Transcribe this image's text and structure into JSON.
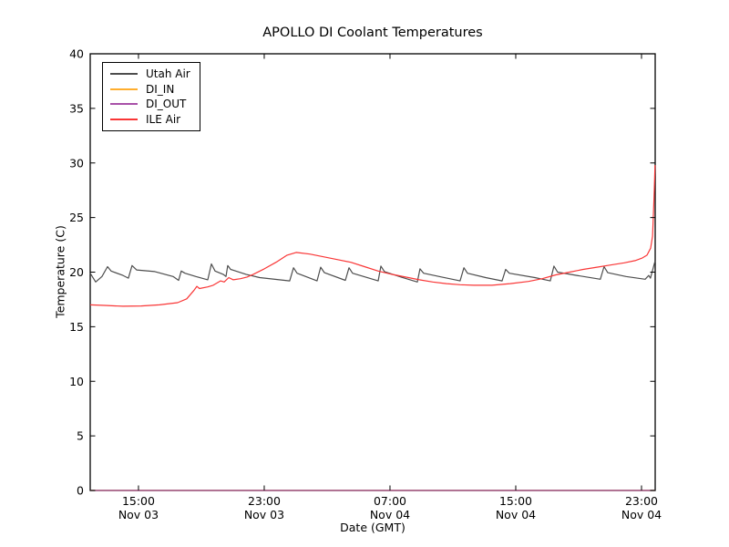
{
  "figure": {
    "background": "#ffffff",
    "frame_color": "#000000",
    "text_color": "#000000"
  },
  "chart_data": {
    "type": "line",
    "title": "APOLLO DI Coolant Temperatures",
    "xlabel": "Date (GMT)",
    "ylabel": "Temperature (C)",
    "grid": false,
    "legend_position": "upper left",
    "x_unit": "hours since Nov 03 00:00 GMT",
    "xlim": [
      11.93,
      47.87
    ],
    "ylim": [
      0,
      40
    ],
    "y_ticks": [
      0,
      5,
      10,
      15,
      20,
      25,
      30,
      35,
      40
    ],
    "x_ticks": [
      {
        "t": 15,
        "time": "15:00",
        "date": "Nov 03"
      },
      {
        "t": 23,
        "time": "23:00",
        "date": "Nov 03"
      },
      {
        "t": 31,
        "time": "07:00",
        "date": "Nov 04"
      },
      {
        "t": 39,
        "time": "15:00",
        "date": "Nov 04"
      },
      {
        "t": 47,
        "time": "23:00",
        "date": "Nov 04"
      }
    ],
    "series": [
      {
        "name": "Utah Air",
        "color": "#4d4d4d",
        "points": [
          [
            11.93,
            19.9
          ],
          [
            12.28,
            19.1
          ],
          [
            12.68,
            19.6
          ],
          [
            13.03,
            20.5
          ],
          [
            13.26,
            20.1
          ],
          [
            14.01,
            19.7
          ],
          [
            14.36,
            19.45
          ],
          [
            14.59,
            20.6
          ],
          [
            14.88,
            20.2
          ],
          [
            16.04,
            20.05
          ],
          [
            17.2,
            19.6
          ],
          [
            17.55,
            19.25
          ],
          [
            17.72,
            20.1
          ],
          [
            17.96,
            19.9
          ],
          [
            18.65,
            19.6
          ],
          [
            19.41,
            19.3
          ],
          [
            19.64,
            20.75
          ],
          [
            19.87,
            20.1
          ],
          [
            20.39,
            19.8
          ],
          [
            20.57,
            19.6
          ],
          [
            20.68,
            20.6
          ],
          [
            20.86,
            20.25
          ],
          [
            21.84,
            19.8
          ],
          [
            22.71,
            19.5
          ],
          [
            24.62,
            19.2
          ],
          [
            24.86,
            20.4
          ],
          [
            25.09,
            19.9
          ],
          [
            26.36,
            19.2
          ],
          [
            26.59,
            20.45
          ],
          [
            26.83,
            19.95
          ],
          [
            28.16,
            19.25
          ],
          [
            28.39,
            20.4
          ],
          [
            28.62,
            19.9
          ],
          [
            30.25,
            19.2
          ],
          [
            30.42,
            20.55
          ],
          [
            30.65,
            20.05
          ],
          [
            31.7,
            19.55
          ],
          [
            32.74,
            19.1
          ],
          [
            32.91,
            20.3
          ],
          [
            33.14,
            19.9
          ],
          [
            34.3,
            19.55
          ],
          [
            35.46,
            19.2
          ],
          [
            35.7,
            20.4
          ],
          [
            35.93,
            19.9
          ],
          [
            37.09,
            19.5
          ],
          [
            38.13,
            19.2
          ],
          [
            38.36,
            20.25
          ],
          [
            38.59,
            19.9
          ],
          [
            40.22,
            19.5
          ],
          [
            41.2,
            19.2
          ],
          [
            41.43,
            20.55
          ],
          [
            41.66,
            20.0
          ],
          [
            42.88,
            19.7
          ],
          [
            44.38,
            19.35
          ],
          [
            44.62,
            20.5
          ],
          [
            44.85,
            19.95
          ],
          [
            46.01,
            19.6
          ],
          [
            47.23,
            19.35
          ],
          [
            47.46,
            19.7
          ],
          [
            47.57,
            19.45
          ],
          [
            47.86,
            21.0
          ]
        ]
      },
      {
        "name": "DI_IN",
        "color": "#ffae2e",
        "points": [
          [
            11.93,
            0
          ],
          [
            47.87,
            0
          ]
        ]
      },
      {
        "name": "DI_OUT",
        "color": "#993399",
        "opacity": 0.85,
        "points": [
          [
            11.93,
            0
          ],
          [
            47.87,
            0
          ]
        ]
      },
      {
        "name": "ILE Air",
        "color": "#f93636",
        "points": [
          [
            11.93,
            17.0
          ],
          [
            12.86,
            16.95
          ],
          [
            14.01,
            16.88
          ],
          [
            15.17,
            16.9
          ],
          [
            16.33,
            17.0
          ],
          [
            17.49,
            17.2
          ],
          [
            18.07,
            17.55
          ],
          [
            18.54,
            18.35
          ],
          [
            18.71,
            18.7
          ],
          [
            18.88,
            18.5
          ],
          [
            19.41,
            18.65
          ],
          [
            19.75,
            18.8
          ],
          [
            20.22,
            19.2
          ],
          [
            20.45,
            19.1
          ],
          [
            20.74,
            19.5
          ],
          [
            21.03,
            19.3
          ],
          [
            21.49,
            19.4
          ],
          [
            21.9,
            19.55
          ],
          [
            22.3,
            19.8
          ],
          [
            23.0,
            20.3
          ],
          [
            23.75,
            20.9
          ],
          [
            24.45,
            21.55
          ],
          [
            25.03,
            21.8
          ],
          [
            25.9,
            21.65
          ],
          [
            26.77,
            21.4
          ],
          [
            27.64,
            21.15
          ],
          [
            28.51,
            20.9
          ],
          [
            29.38,
            20.5
          ],
          [
            30.25,
            20.1
          ],
          [
            31.12,
            19.8
          ],
          [
            31.99,
            19.55
          ],
          [
            32.86,
            19.3
          ],
          [
            33.72,
            19.1
          ],
          [
            34.59,
            18.95
          ],
          [
            35.46,
            18.85
          ],
          [
            36.33,
            18.8
          ],
          [
            37.49,
            18.8
          ],
          [
            38.65,
            18.95
          ],
          [
            39.81,
            19.15
          ],
          [
            40.68,
            19.4
          ],
          [
            41.55,
            19.75
          ],
          [
            42.42,
            20.0
          ],
          [
            43.29,
            20.25
          ],
          [
            44.16,
            20.45
          ],
          [
            45.03,
            20.65
          ],
          [
            45.9,
            20.85
          ],
          [
            46.59,
            21.05
          ],
          [
            47.06,
            21.3
          ],
          [
            47.35,
            21.55
          ],
          [
            47.58,
            22.2
          ],
          [
            47.7,
            23.3
          ],
          [
            47.75,
            25.0
          ],
          [
            47.81,
            27.5
          ],
          [
            47.86,
            29.8
          ]
        ]
      }
    ]
  }
}
